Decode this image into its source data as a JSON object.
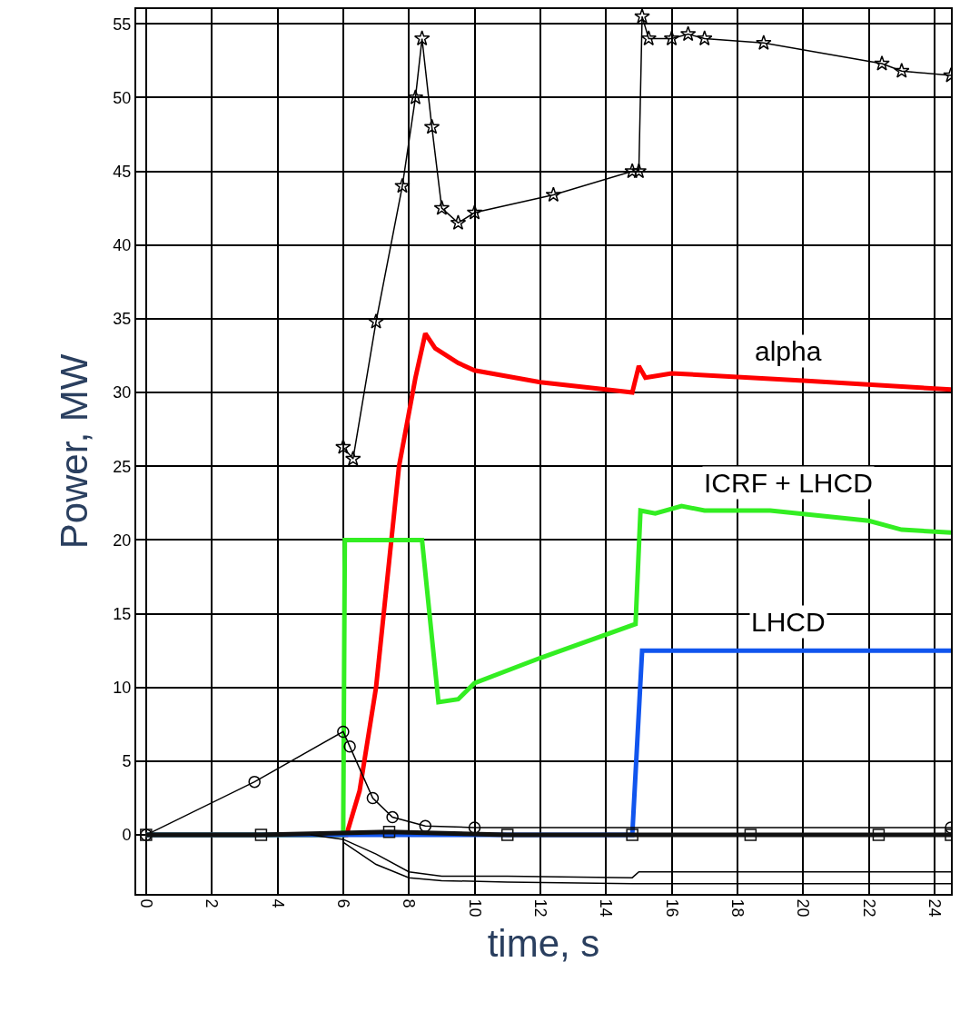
{
  "chart_data": {
    "type": "line",
    "xlabel": "time, s",
    "ylabel": "Power, MW",
    "xlim": [
      -0.3,
      24.5
    ],
    "ylim": [
      -4,
      56
    ],
    "xticks": [
      0,
      2,
      4,
      6,
      8,
      10,
      12,
      14,
      16,
      18,
      20,
      22,
      24
    ],
    "yticks": [
      0,
      5,
      10,
      15,
      20,
      25,
      30,
      35,
      40,
      45,
      50,
      55
    ],
    "grid": true,
    "legend": false,
    "line_style": "solid",
    "series": [
      {
        "color": "#000000",
        "marker": "star",
        "x": [
          6,
          6.3,
          7,
          7.8,
          8.2,
          8.4,
          8.7,
          9,
          9.5,
          10,
          12.4,
          14.8,
          15,
          15.1,
          15.3,
          16,
          16.5,
          17,
          18.8,
          22.4,
          23,
          24.5
        ],
        "values": [
          26.3,
          25.5,
          34.8,
          44,
          50,
          54,
          48,
          42.5,
          41.5,
          42.2,
          43.4,
          45,
          45,
          55.5,
          54,
          54,
          54.3,
          54,
          53.7,
          52.3,
          51.8,
          51.5
        ]
      },
      {
        "name": "alpha",
        "color": "#ff0000",
        "marker": "none",
        "x": [
          0,
          6.1,
          6.5,
          7,
          7.7,
          8.2,
          8.5,
          8.8,
          9.5,
          10,
          12,
          14,
          14.8,
          15,
          15.2,
          16,
          20,
          24.5
        ],
        "values": [
          0,
          0,
          3,
          10,
          25,
          31,
          34,
          33,
          32,
          31.5,
          30.7,
          30.2,
          30,
          31.8,
          31,
          31.3,
          30.8,
          30.2
        ]
      },
      {
        "name": "ICRF + LHCD",
        "color": "#33ee22",
        "marker": "none",
        "x": [
          0,
          6,
          6.05,
          8.4,
          8.9,
          9.5,
          10,
          12,
          14.9,
          15.05,
          15.5,
          16.3,
          17,
          19,
          22,
          23,
          24.5
        ],
        "values": [
          0,
          0,
          20,
          20,
          9,
          9.2,
          10.3,
          12,
          14.3,
          22,
          21.8,
          22.3,
          22,
          22,
          21.3,
          20.7,
          20.5
        ]
      },
      {
        "name": "LHCD",
        "color": "#1155ee",
        "marker": "none",
        "x": [
          0,
          14.8,
          15.1,
          15.5,
          24.5
        ],
        "values": [
          0,
          0,
          12.5,
          12.5,
          12.5
        ]
      },
      {
        "color": "#000000",
        "marker": "circle",
        "x": [
          0,
          3.3,
          6,
          6.2,
          6.9,
          7.5,
          8.5,
          10,
          24.5
        ],
        "values": [
          0,
          3.6,
          7,
          6,
          2.5,
          1.2,
          0.6,
          0.5,
          0.5
        ]
      },
      {
        "color": "#111111",
        "marker": "square",
        "x": [
          0,
          3.5,
          7.4,
          11,
          14.8,
          18.4,
          22.3,
          24.5
        ],
        "values": [
          0,
          0,
          0.2,
          0,
          0,
          0,
          0,
          0
        ]
      },
      {
        "color": "#000000",
        "marker": "none",
        "x": [
          5,
          6,
          7,
          8,
          9,
          11,
          14.8,
          15,
          18,
          24.5
        ],
        "values": [
          0,
          -0.3,
          -1.3,
          -2.5,
          -2.8,
          -2.8,
          -2.9,
          -2.5,
          -2.5,
          -2.5
        ]
      },
      {
        "color": "#000000",
        "marker": "none",
        "x": [
          6,
          7,
          8,
          9,
          11,
          14.8,
          24.5
        ],
        "values": [
          -0.5,
          -2,
          -2.9,
          -3.1,
          -3.2,
          -3.3,
          -3.3
        ]
      }
    ]
  }
}
